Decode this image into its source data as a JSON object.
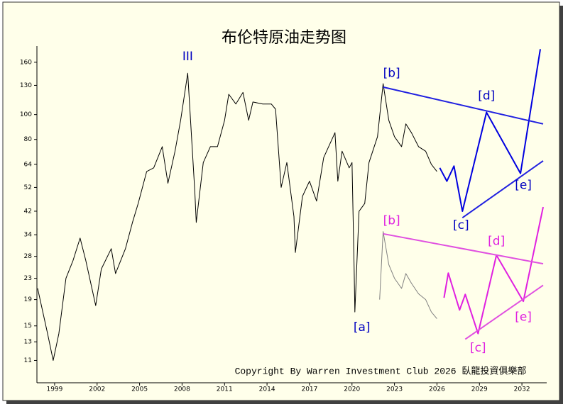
{
  "chart_data": {
    "type": "line",
    "title": "布伦特原油走势图",
    "copyright": "Copyright By Warren Investment Club 2026 臥龍投資俱樂部",
    "log_scale": true,
    "xlim": [
      1997.75,
      2033.75
    ],
    "ylim": [
      9,
      185
    ],
    "xticks": [
      1999,
      2002,
      2005,
      2008,
      2011,
      2014,
      2017,
      2020,
      2023,
      2026,
      2029,
      2032
    ],
    "yticks": [
      11,
      13,
      15,
      19,
      23,
      28,
      34,
      42,
      52,
      64,
      80,
      100,
      130,
      160
    ],
    "series": [
      {
        "color": "#000000",
        "x": [
          1997.8,
          1998.5,
          1998.9,
          1999.3,
          1999.8,
          2000.3,
          2000.8,
          2001.2,
          2001.9,
          2002.3,
          2003.0,
          2003.3,
          2004.0,
          2004.5,
          2004.9,
          2005.5,
          2006.0,
          2006.6,
          2007.0,
          2007.5,
          2007.9,
          2008.4,
          2008.9,
          2009.0,
          2009.5,
          2010.0,
          2010.5,
          2011.0,
          2011.3,
          2011.8,
          2012.3,
          2012.7,
          2013.0,
          2013.7,
          2014.3,
          2014.6,
          2015.0,
          2015.4,
          2015.9,
          2016.0,
          2016.5,
          2017.0,
          2017.5,
          2018.0,
          2018.8,
          2019.0,
          2019.3,
          2019.8,
          2020.0,
          2020.15,
          2020.2,
          2020.5,
          2020.9,
          2021.2,
          2021.8,
          2022.2,
          2022.6,
          2023.0,
          2023.5,
          2023.8,
          2024.2,
          2024.7,
          2025.2,
          2025.6,
          2026.0
        ],
        "values": [
          21,
          14,
          11,
          14,
          23,
          27,
          33,
          27,
          18,
          25,
          30,
          24,
          30,
          38,
          45,
          60,
          62,
          75,
          54,
          72,
          95,
          145,
          50,
          38,
          65,
          75,
          75,
          95,
          120,
          110,
          122,
          95,
          112,
          110,
          110,
          105,
          52,
          65,
          40,
          29,
          48,
          55,
          46,
          68,
          85,
          55,
          72,
          62,
          65,
          25,
          17,
          42,
          45,
          65,
          82,
          132,
          95,
          82,
          75,
          92,
          85,
          75,
          72,
          64,
          60
        ]
      },
      {
        "color": "#808080",
        "x": [
          2021.95,
          2022.2,
          2022.6,
          2023.0,
          2023.5,
          2023.8,
          2024.2,
          2024.7,
          2025.2,
          2025.6,
          2026.0
        ],
        "values": [
          19,
          35,
          26,
          23,
          21,
          24,
          22,
          20,
          19,
          17,
          16
        ]
      },
      {
        "color": "#0000e0",
        "x": [
          2026.2,
          2026.7,
          2027.2,
          2027.8,
          2029.5,
          2031.9,
          2033.3
        ],
        "values": [
          62,
          55,
          63,
          42,
          102,
          59,
          180
        ]
      },
      {
        "color": "#2020e0",
        "x": [
          2022.2,
          2033.5
        ],
        "values": [
          128,
          92
        ]
      },
      {
        "color": "#2020e0",
        "x": [
          2027.8,
          2033.5
        ],
        "values": [
          39.6,
          66
        ]
      },
      {
        "color": "#e020e0",
        "x": [
          2026.5,
          2026.8,
          2027.6,
          2028.0,
          2028.9,
          2030.2,
          2032.1,
          2033.5
        ],
        "values": [
          19.3,
          24.1,
          17.3,
          19.9,
          14.0,
          28.3,
          18.7,
          43.6
        ]
      },
      {
        "color": "#e050e0",
        "x": [
          2022.2,
          2033.5
        ],
        "values": [
          34.3,
          26.2
        ]
      },
      {
        "color": "#e050e0",
        "x": [
          2028.0,
          2033.5
        ],
        "values": [
          13.3,
          21.6
        ]
      }
    ],
    "annotations": [
      {
        "text": "III",
        "x": 2008.4,
        "y": 168,
        "color": "#0000c0"
      },
      {
        "text": "[a]",
        "x": 2020.7,
        "y": 14.8,
        "color": "#0000c0"
      },
      {
        "text": "[b]",
        "x": 2022.8,
        "y": 145,
        "color": "#0000c0"
      },
      {
        "text": "[c]",
        "x": 2027.7,
        "y": 37,
        "color": "#0000c0"
      },
      {
        "text": "[d]",
        "x": 2029.5,
        "y": 118,
        "color": "#0000c0"
      },
      {
        "text": "[e]",
        "x": 2032.1,
        "y": 53,
        "color": "#0000c0"
      },
      {
        "text": "[b]",
        "x": 2022.8,
        "y": 38.5,
        "color": "#e020e0"
      },
      {
        "text": "[c]",
        "x": 2028.9,
        "y": 12.3,
        "color": "#e020e0"
      },
      {
        "text": "[d]",
        "x": 2030.2,
        "y": 32,
        "color": "#e020e0"
      },
      {
        "text": "[e]",
        "x": 2032.1,
        "y": 16.2,
        "color": "#e020e0"
      }
    ]
  }
}
